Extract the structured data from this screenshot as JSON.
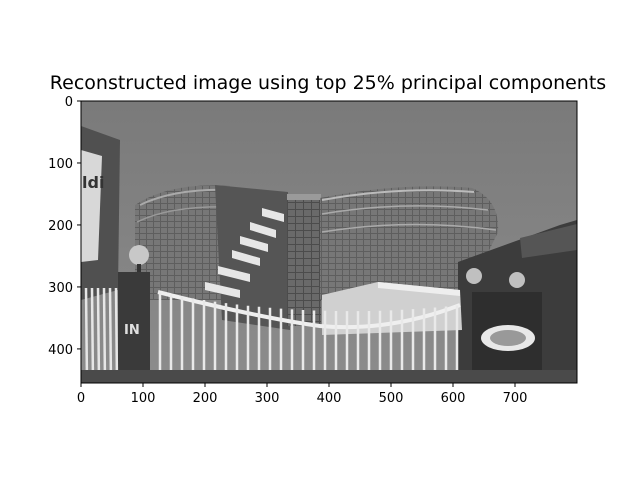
{
  "chart_data": {
    "type": "image",
    "title": "Reconstructed image using top 25% principal components",
    "colormap": "gray",
    "image_size": [
      800,
      455
    ],
    "xlim": [
      0,
      800
    ],
    "ylim": [
      455,
      0
    ],
    "x_ticks": [
      0,
      100,
      200,
      300,
      400,
      500,
      600,
      700
    ],
    "y_ticks": [
      0,
      100,
      200,
      300,
      400
    ],
    "sign_text": "IN",
    "banner_text": "ldi"
  }
}
